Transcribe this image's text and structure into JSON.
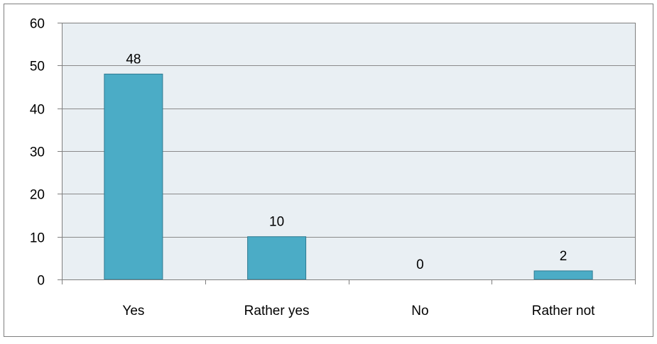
{
  "chart_data": {
    "type": "bar",
    "categories": [
      "Yes",
      "Rather yes",
      "No",
      "Rather not"
    ],
    "values": [
      48,
      10,
      0,
      2
    ],
    "data_labels": [
      "48",
      "10",
      "0",
      "2"
    ],
    "title": "",
    "xlabel": "",
    "ylabel": "",
    "ylim": [
      0,
      60
    ],
    "yticks": [
      0,
      10,
      20,
      30,
      40,
      50,
      60
    ],
    "ytick_labels": [
      "0",
      "10",
      "20",
      "30",
      "40",
      "50",
      "60"
    ],
    "grid": true,
    "legend": "none",
    "colors": {
      "bar_fill": "#4bacc6",
      "bar_stroke": "#2e7a91",
      "plot_background": "#e9eff3",
      "gridline": "#8a8a8a",
      "frame": "#7f7f7f",
      "outer_border": "#7f7f7f"
    }
  }
}
